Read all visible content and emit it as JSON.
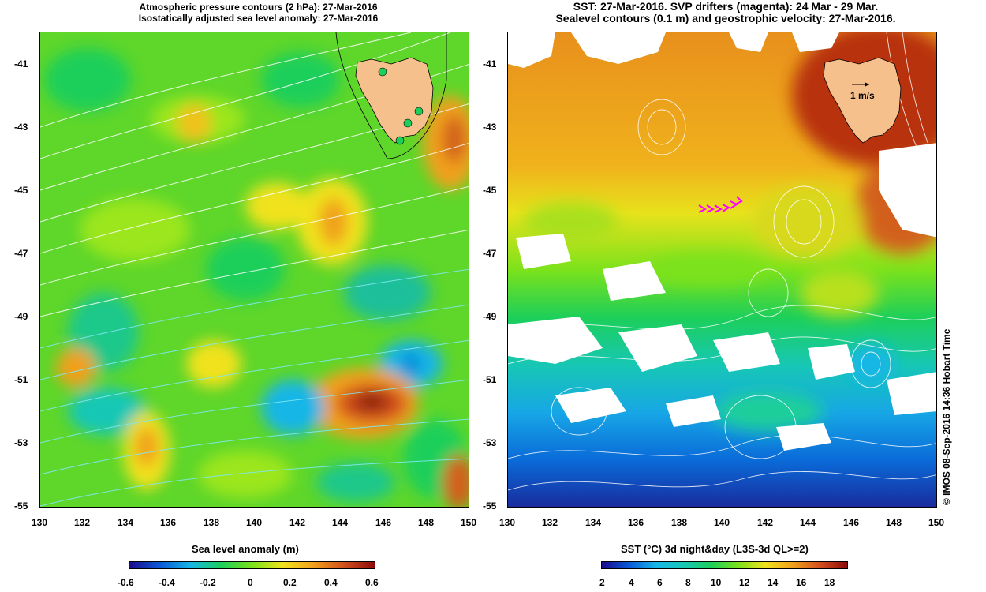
{
  "left_panel": {
    "title_line1": "Atmospheric pressure contours (2 hPa): 27-Mar-2016",
    "title_line2": "Isostatically adjusted sea level anomaly: 27-Mar-2016",
    "colorbar_title": "Sea level anomaly (m)",
    "colorbar_ticks": [
      "-0.6",
      "-0.4",
      "-0.2",
      "0",
      "0.2",
      "0.4",
      "0.6"
    ]
  },
  "right_panel": {
    "title_line1": "SST: 27-Mar-2016. SVP drifters (magenta): 24 Mar - 29 Mar.",
    "title_line2": "Sealevel contours (0.1 m) and geostrophic velocity: 27-Mar-2016.",
    "scale_label": "1 m/s",
    "colorbar_title": "SST (°C) 3d night&day (L3S-3d QL>=2)",
    "colorbar_ticks": [
      "2",
      "4",
      "6",
      "8",
      "10",
      "12",
      "14",
      "16",
      "18"
    ]
  },
  "axes": {
    "lat_ticks": [
      "-41",
      "-43",
      "-45",
      "-47",
      "-49",
      "-51",
      "-53",
      "-55"
    ],
    "lon_ticks": [
      "130",
      "132",
      "134",
      "136",
      "138",
      "140",
      "142",
      "144",
      "146",
      "148",
      "150"
    ]
  },
  "copyright": "© IMOS 08-Sep-2016 14:36 Hobart Time",
  "colors": {
    "land": "#f6c08c",
    "anomaly_scale": [
      "#1a0a8c",
      "#0a5ad8",
      "#17b6e6",
      "#1ccf5a",
      "#7be21c",
      "#f0e21c",
      "#f0a01c",
      "#d2501c",
      "#8c0a0a"
    ],
    "sst_scale": [
      "#1a0a8c",
      "#0a5ad8",
      "#17b6e6",
      "#17c7b5",
      "#1ccf5a",
      "#7be21c",
      "#f0e21c",
      "#f0a01c",
      "#d2501c",
      "#8c0a0a"
    ],
    "drifter": "#ff00ff"
  }
}
